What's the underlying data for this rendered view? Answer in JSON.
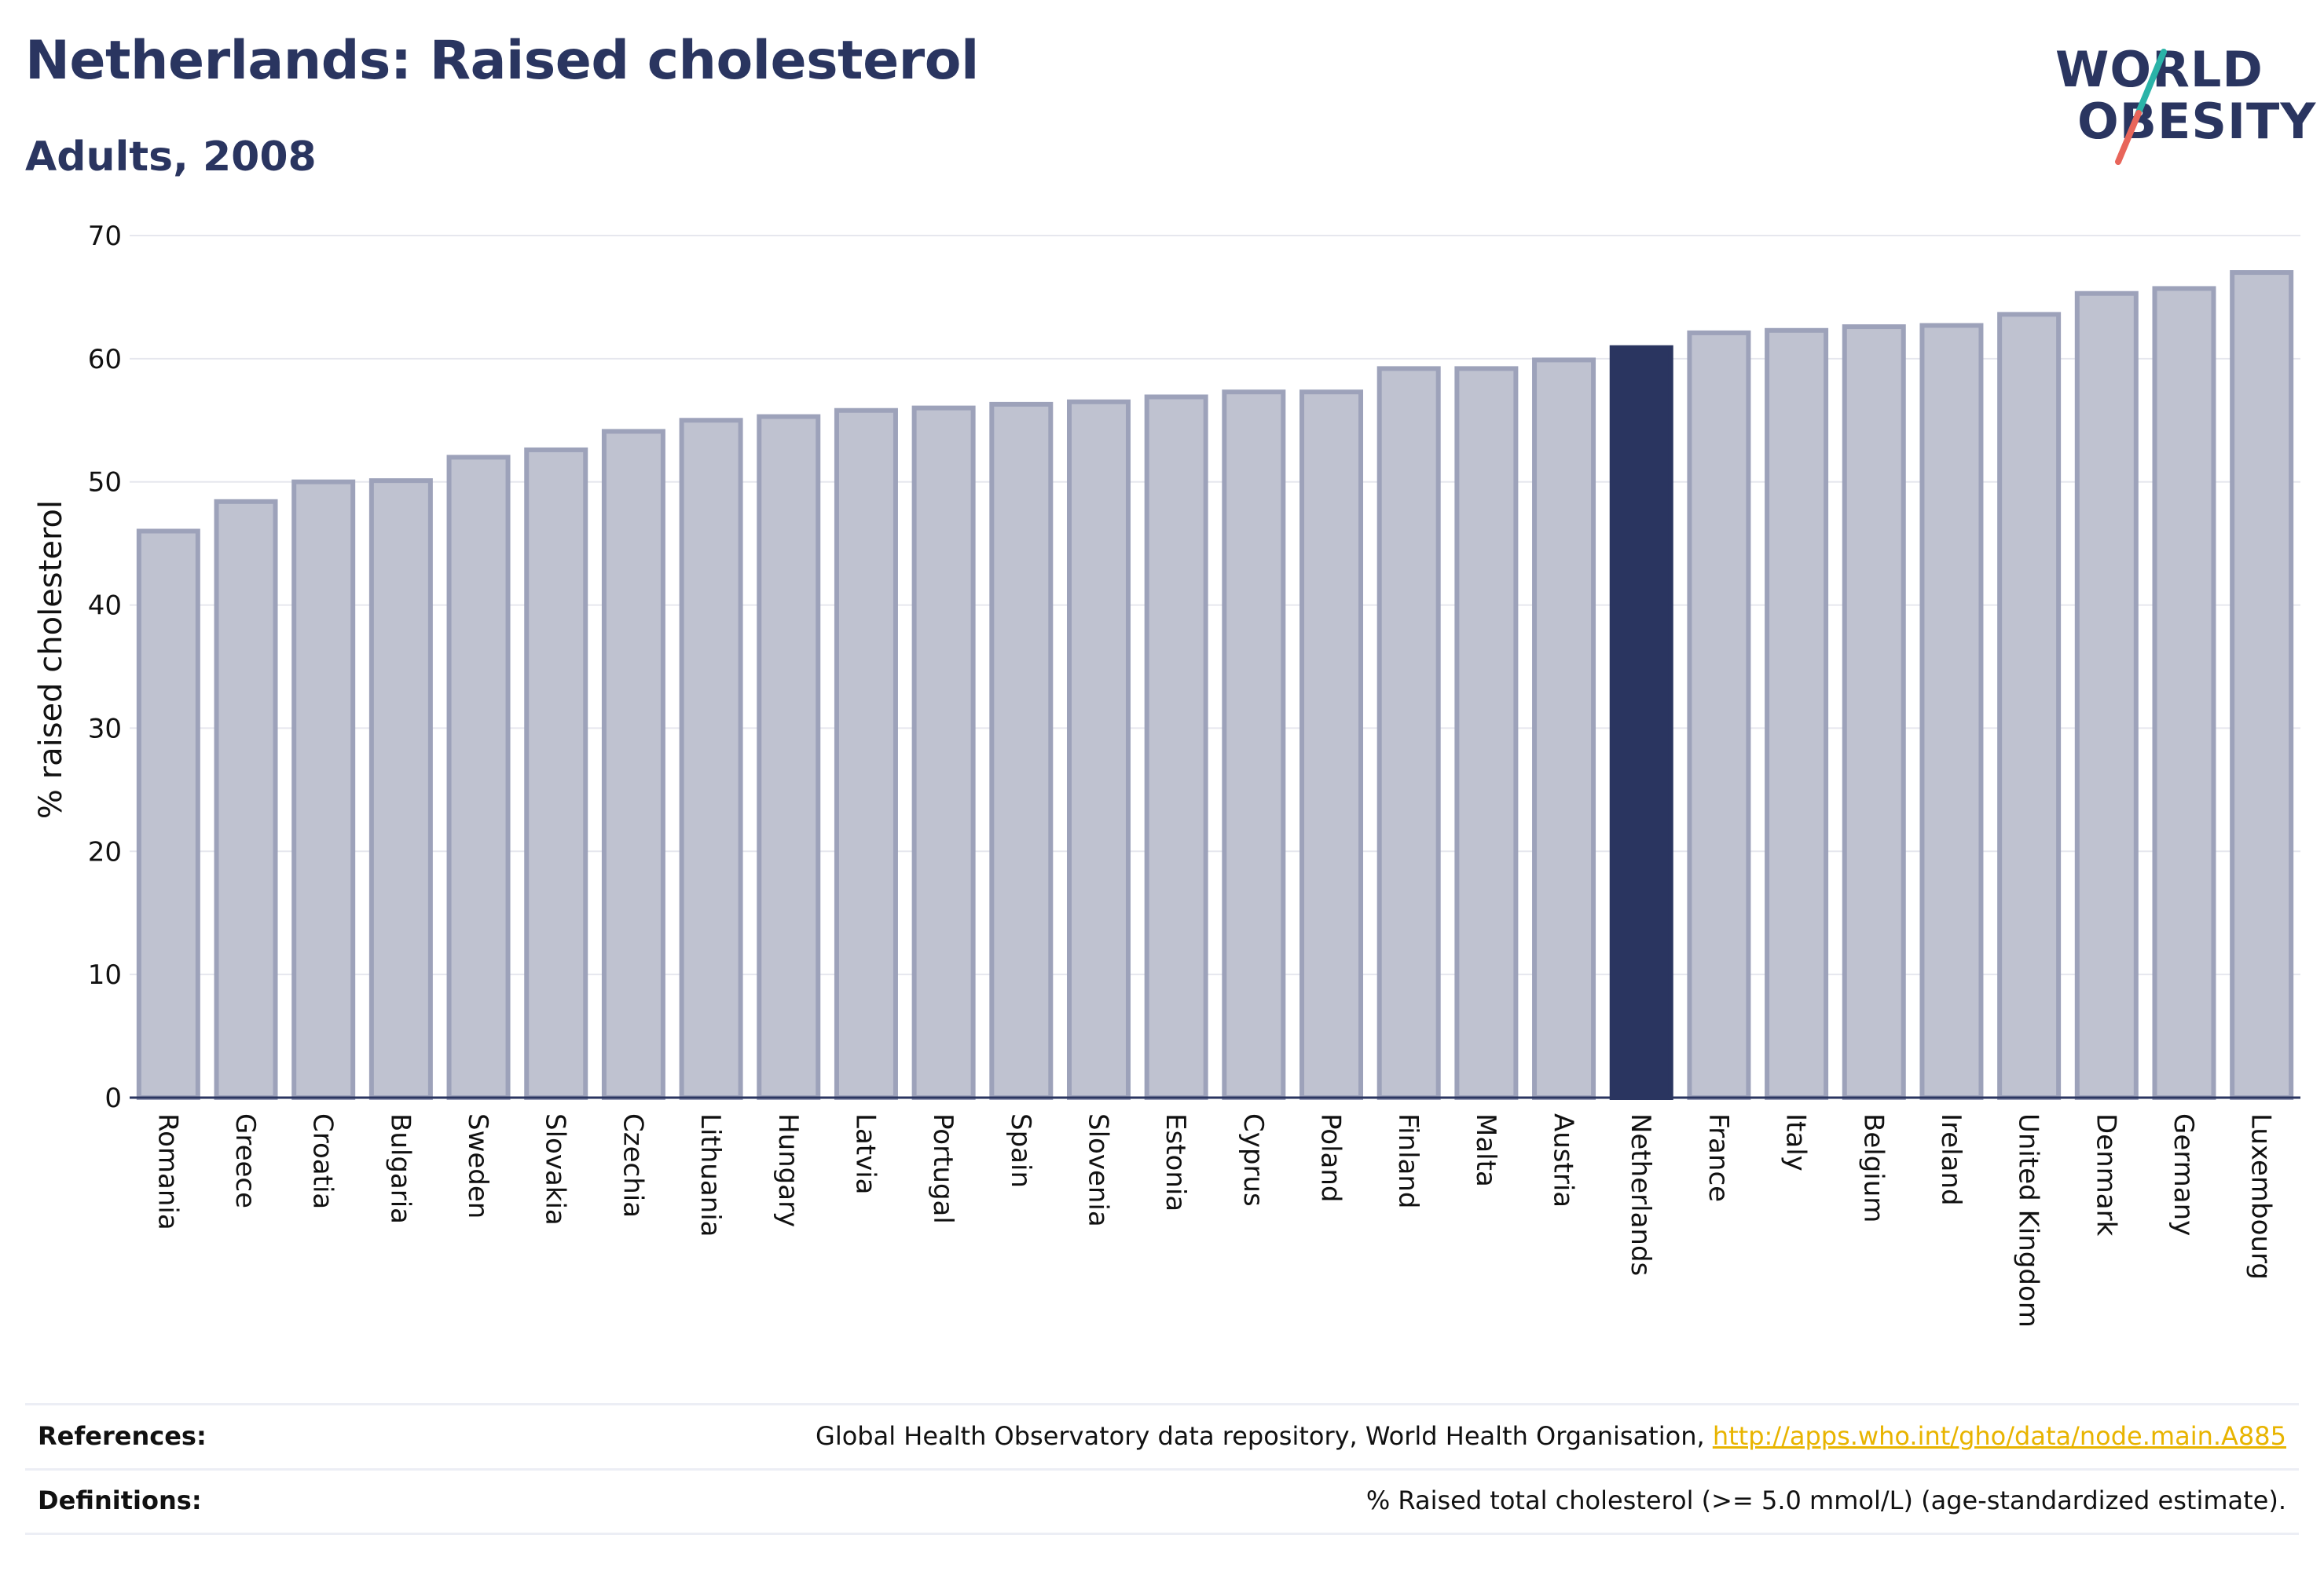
{
  "header": {
    "title": "Netherlands: Raised cholesterol",
    "subtitle": "Adults, 2008"
  },
  "logo": {
    "line1": "WORLD",
    "line2": "OBESITY",
    "slash_colors": [
      "#2bb3a8",
      "#e8655a"
    ]
  },
  "colors": {
    "bar_fill": "#bfc2d0",
    "bar_stroke": "#9da2ba",
    "highlight": "#2a3560",
    "grid": "#e6e7ee",
    "axis": "#2a3560",
    "link": "#e8b400"
  },
  "chart_data": {
    "type": "bar",
    "ylabel": "% raised cholesterol",
    "ylim": [
      0,
      70
    ],
    "yticks": [
      0,
      10,
      20,
      30,
      40,
      50,
      60,
      70
    ],
    "grid": true,
    "highlight": "Netherlands",
    "categories": [
      "Romania",
      "Greece",
      "Croatia",
      "Bulgaria",
      "Sweden",
      "Slovakia",
      "Czechia",
      "Lithuania",
      "Hungary",
      "Latvia",
      "Portugal",
      "Spain",
      "Slovenia",
      "Estonia",
      "Cyprus",
      "Poland",
      "Finland",
      "Malta",
      "Austria",
      "Netherlands",
      "France",
      "Italy",
      "Belgium",
      "Ireland",
      "United Kingdom",
      "Denmark",
      "Germany",
      "Luxembourg"
    ],
    "values": [
      46.0,
      48.4,
      50.0,
      50.1,
      52.0,
      52.6,
      54.1,
      55.0,
      55.3,
      55.8,
      56.0,
      56.3,
      56.5,
      56.9,
      57.3,
      57.3,
      59.2,
      59.2,
      59.9,
      60.9,
      62.1,
      62.3,
      62.6,
      62.7,
      63.6,
      65.3,
      65.7,
      67.0
    ]
  },
  "footer": {
    "references_label": "References:",
    "references_text": "Global Health Observatory data repository, World Health Organisation, ",
    "references_link": "http://apps.who.int/gho/data/node.main.A885",
    "definitions_label": "Definitions:",
    "definitions_text": "% Raised total cholesterol (>= 5.0 mmol/L) (age-standardized estimate)."
  }
}
